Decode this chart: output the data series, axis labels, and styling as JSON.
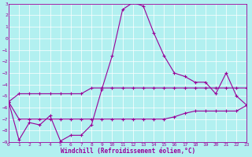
{
  "title": "",
  "xlabel": "Windchill (Refroidissement éolien,°C)",
  "background_color": "#b2f0f0",
  "grid_color": "#ffffff",
  "line_color": "#990099",
  "xlim": [
    0,
    23
  ],
  "ylim": [
    -9,
    3
  ],
  "xticks": [
    0,
    1,
    2,
    3,
    4,
    5,
    6,
    7,
    8,
    9,
    10,
    11,
    12,
    13,
    14,
    15,
    16,
    17,
    18,
    19,
    20,
    21,
    22,
    23
  ],
  "yticks": [
    3,
    2,
    1,
    0,
    -1,
    -2,
    -3,
    -4,
    -5,
    -6,
    -7,
    -8,
    -9
  ],
  "line1_x": [
    0,
    1,
    2,
    3,
    4,
    5,
    6,
    7,
    8,
    9,
    10,
    11,
    12,
    13,
    14,
    15,
    16,
    17,
    18,
    19,
    20,
    21,
    22,
    23
  ],
  "line1_y": [
    -5.5,
    -8.8,
    -7.3,
    -7.5,
    -6.7,
    -8.9,
    -8.4,
    -8.4,
    -7.5,
    -4.4,
    -1.5,
    2.5,
    3.1,
    2.8,
    0.5,
    -1.5,
    -3.0,
    -3.3,
    -3.8,
    -3.8,
    -4.8,
    -3.0,
    -5.0,
    -5.8
  ],
  "line2_x": [
    0,
    1,
    2,
    3,
    4,
    5,
    6,
    7,
    8,
    9,
    10,
    11,
    12,
    13,
    14,
    15,
    16,
    17,
    18,
    19,
    20,
    21,
    22,
    23
  ],
  "line2_y": [
    -5.5,
    -4.8,
    -4.8,
    -4.8,
    -4.8,
    -4.8,
    -4.8,
    -4.8,
    -4.3,
    -4.3,
    -4.3,
    -4.3,
    -4.3,
    -4.3,
    -4.3,
    -4.3,
    -4.3,
    -4.3,
    -4.3,
    -4.3,
    -4.3,
    -4.3,
    -4.3,
    -4.3
  ],
  "line3_x": [
    0,
    1,
    2,
    3,
    4,
    5,
    6,
    7,
    8,
    9,
    10,
    11,
    12,
    13,
    14,
    15,
    16,
    17,
    18,
    19,
    20,
    21,
    22,
    23
  ],
  "line3_y": [
    -5.5,
    -7.0,
    -7.0,
    -7.0,
    -7.0,
    -7.0,
    -7.0,
    -7.0,
    -7.0,
    -7.0,
    -7.0,
    -7.0,
    -7.0,
    -7.0,
    -7.0,
    -7.0,
    -6.8,
    -6.5,
    -6.3,
    -6.3,
    -6.3,
    -6.3,
    -6.3,
    -5.8
  ]
}
